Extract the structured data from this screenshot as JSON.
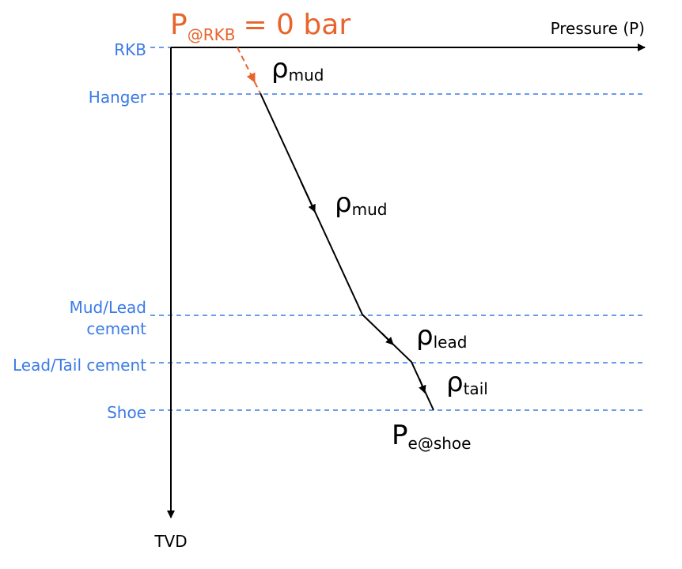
{
  "surface_pressure": {
    "symbol": "P",
    "subscript": "@RKB",
    "text": "= 0 bar"
  },
  "axes": {
    "x_label": "Pressure (P)",
    "y_label": "TVD"
  },
  "depth_levels": [
    {
      "lines": [
        "RKB"
      ]
    },
    {
      "lines": [
        "Hanger"
      ]
    },
    {
      "lines": [
        "Mud/Lead",
        "cement"
      ]
    },
    {
      "lines": [
        "Lead/Tail cement"
      ]
    },
    {
      "lines": [
        "Shoe"
      ]
    }
  ],
  "densities": [
    {
      "symbol": "ρ",
      "subscript": "mud"
    },
    {
      "symbol": "ρ",
      "subscript": "mud"
    },
    {
      "symbol": "ρ",
      "subscript": "lead"
    },
    {
      "symbol": "ρ",
      "subscript": "tail"
    }
  ],
  "shoe_pressure": {
    "symbol": "P",
    "subscript": "e@shoe"
  }
}
